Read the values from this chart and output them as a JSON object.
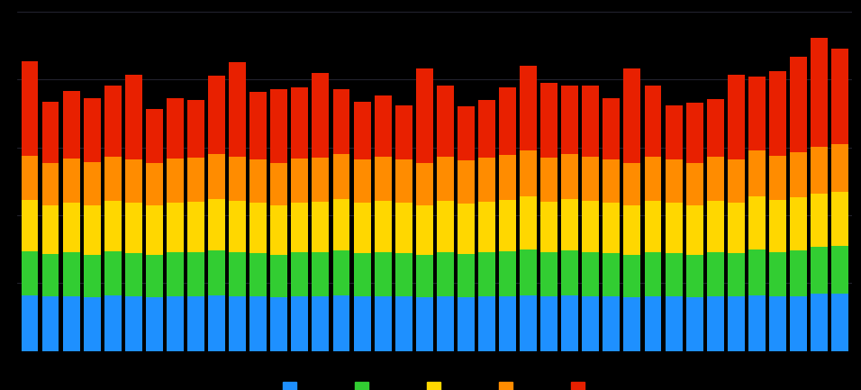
{
  "background_color": "#000000",
  "plot_bg_color": "#000000",
  "bar_colors": [
    "#1e90ff",
    "#32cd32",
    "#ffd700",
    "#ff8c00",
    "#e82000"
  ],
  "grid_color": "#2a2a3a",
  "legend_colors": [
    "#1e90ff",
    "#32cd32",
    "#ffd700",
    "#ff8c00",
    "#e82000"
  ],
  "ylim": [
    0,
    10
  ],
  "blues": [
    1.65,
    1.6,
    1.62,
    1.58,
    1.63,
    1.6,
    1.58,
    1.62,
    1.6,
    1.65,
    1.62,
    1.6,
    1.58,
    1.62,
    1.6,
    1.65,
    1.6,
    1.62,
    1.6,
    1.58,
    1.62,
    1.58,
    1.6,
    1.62,
    1.65,
    1.6,
    1.65,
    1.62,
    1.6,
    1.58,
    1.62,
    1.6,
    1.58,
    1.62,
    1.6,
    1.65,
    1.6,
    1.62,
    1.68,
    1.7
  ],
  "greens": [
    1.3,
    1.25,
    1.28,
    1.26,
    1.3,
    1.28,
    1.25,
    1.28,
    1.3,
    1.32,
    1.3,
    1.28,
    1.25,
    1.28,
    1.3,
    1.32,
    1.28,
    1.3,
    1.28,
    1.25,
    1.3,
    1.28,
    1.3,
    1.32,
    1.35,
    1.3,
    1.32,
    1.3,
    1.28,
    1.25,
    1.3,
    1.28,
    1.25,
    1.3,
    1.28,
    1.35,
    1.32,
    1.35,
    1.38,
    1.4
  ],
  "yellows": [
    1.5,
    1.45,
    1.48,
    1.46,
    1.5,
    1.48,
    1.45,
    1.48,
    1.5,
    1.52,
    1.5,
    1.48,
    1.45,
    1.48,
    1.5,
    1.52,
    1.48,
    1.5,
    1.48,
    1.45,
    1.5,
    1.48,
    1.5,
    1.52,
    1.55,
    1.5,
    1.52,
    1.5,
    1.48,
    1.45,
    1.5,
    1.48,
    1.45,
    1.5,
    1.48,
    1.55,
    1.52,
    1.55,
    1.58,
    1.6
  ],
  "oranges": [
    1.3,
    1.25,
    1.28,
    1.26,
    1.3,
    1.28,
    1.25,
    1.28,
    1.3,
    1.32,
    1.3,
    1.28,
    1.25,
    1.28,
    1.3,
    1.32,
    1.28,
    1.3,
    1.28,
    1.25,
    1.3,
    1.28,
    1.3,
    1.32,
    1.35,
    1.3,
    1.32,
    1.3,
    1.28,
    1.25,
    1.3,
    1.28,
    1.25,
    1.3,
    1.28,
    1.35,
    1.32,
    1.35,
    1.38,
    1.4
  ],
  "reds": [
    2.8,
    1.8,
    2.0,
    1.9,
    2.1,
    2.5,
    1.6,
    1.8,
    1.7,
    2.3,
    2.8,
    2.0,
    2.2,
    2.1,
    2.5,
    1.9,
    1.7,
    1.8,
    1.6,
    2.8,
    2.1,
    1.6,
    1.7,
    2.0,
    2.5,
    2.2,
    2.0,
    2.1,
    1.8,
    2.8,
    2.1,
    1.6,
    1.8,
    1.7,
    2.5,
    2.2,
    2.5,
    2.8,
    3.2,
    2.8
  ]
}
